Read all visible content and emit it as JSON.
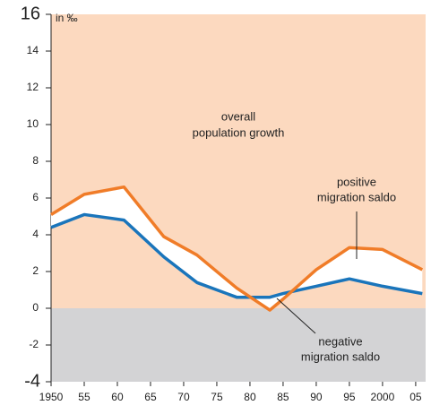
{
  "chart_data": {
    "type": "line",
    "unit_label": "in ‰",
    "annotations": [
      {
        "lines": [
          "overall",
          "population growth"
        ]
      },
      {
        "lines": [
          "positive",
          "migration saldo"
        ]
      },
      {
        "lines": [
          "negative",
          "migration saldo"
        ]
      }
    ],
    "x": [
      1950,
      1955,
      1961,
      1967,
      1972,
      1978,
      1983,
      1985,
      1990,
      1995,
      2000,
      2006
    ],
    "series": [
      {
        "color": "#f07c28",
        "values": [
          5.1,
          6.2,
          6.6,
          3.9,
          2.9,
          1.1,
          -0.1,
          0.5,
          2.1,
          3.3,
          3.2,
          2.1
        ]
      },
      {
        "color": "#1a75bb",
        "values": [
          4.4,
          5.1,
          4.8,
          2.8,
          1.4,
          0.6,
          0.6,
          0.8,
          1.2,
          1.6,
          1.2,
          0.8
        ]
      }
    ],
    "xlim": [
      1950,
      2006.5
    ],
    "ylim": [
      -4,
      16
    ],
    "xticks": [
      {
        "value": 1950,
        "label": "1950"
      },
      {
        "value": 1955,
        "label": "55"
      },
      {
        "value": 1960,
        "label": "60"
      },
      {
        "value": 1965,
        "label": "65"
      },
      {
        "value": 1970,
        "label": "70"
      },
      {
        "value": 1975,
        "label": "75"
      },
      {
        "value": 1980,
        "label": "80"
      },
      {
        "value": 1985,
        "label": "85"
      },
      {
        "value": 1990,
        "label": "90"
      },
      {
        "value": 1995,
        "label": "95"
      },
      {
        "value": 2000,
        "label": "2000"
      },
      {
        "value": 2005,
        "label": "05"
      }
    ],
    "yticks": [
      -4,
      -2,
      0,
      2,
      4,
      6,
      8,
      10,
      12,
      14,
      16
    ],
    "above_zero_color": "#fcd9bf",
    "below_zero_color": "#d3d3d5"
  }
}
